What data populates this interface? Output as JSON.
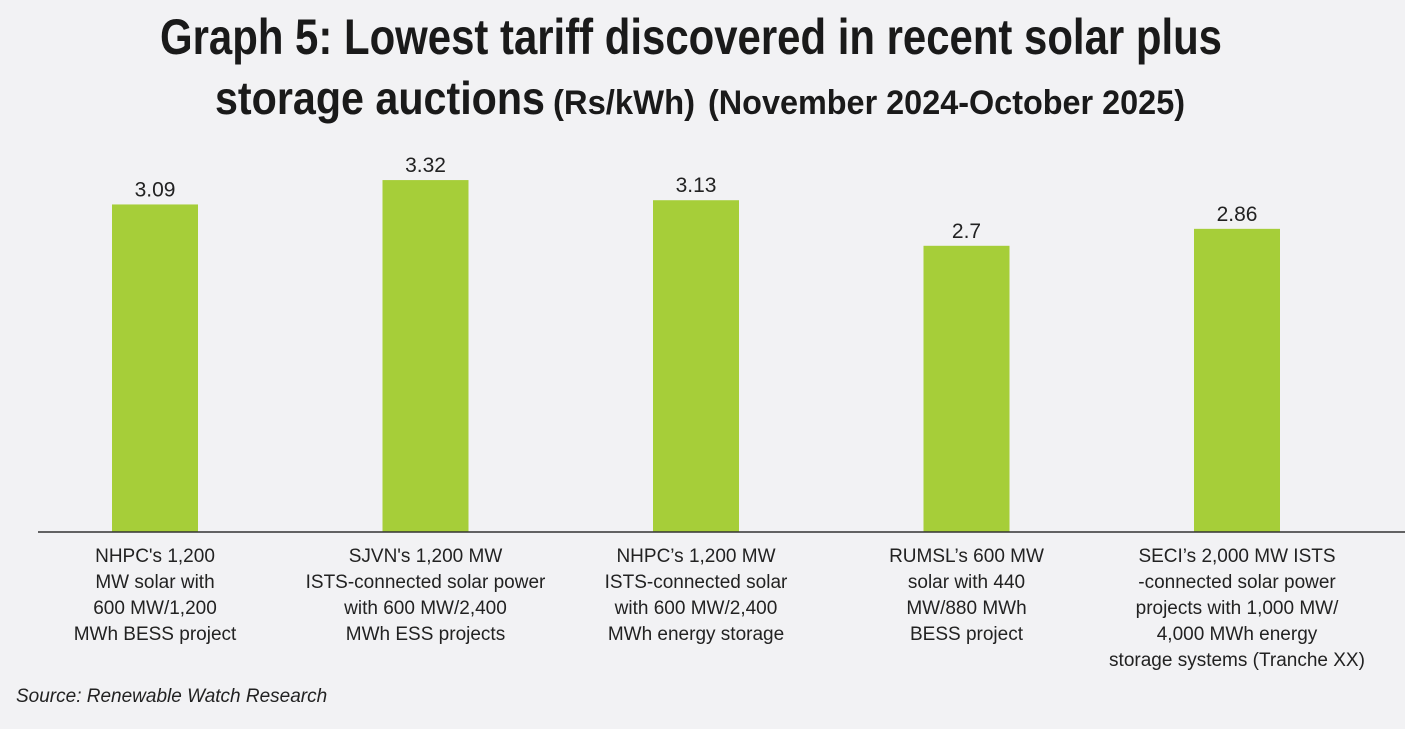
{
  "chart_data": {
    "type": "bar",
    "title": "Graph 5: Lowest tariff discovered in recent solar plus",
    "title_line2_main": "storage auctions",
    "title_line2_unit": "(Rs/kWh)",
    "title_line2_period": "(November 2024-October 2025)",
    "xlabel": "",
    "ylabel": "Rs/kWh",
    "ylim": [
      0,
      3.6
    ],
    "grid": false,
    "categories": [
      [
        "NHPC's 1,200",
        "MW solar with",
        "600 MW/1,200",
        "MWh BESS project"
      ],
      [
        "SJVN's 1,200 MW",
        "ISTS-connected solar power",
        "with 600 MW/2,400",
        "MWh ESS projects"
      ],
      [
        "NHPC’s 1,200 MW",
        "ISTS-connected solar",
        "with 600 MW/2,400",
        "MWh energy storage"
      ],
      [
        "RUMSL’s 600 MW",
        "solar with 440",
        "MW/880 MWh",
        "BESS project"
      ],
      [
        "SECI’s 2,000 MW ISTS",
        "-connected solar power",
        "projects with 1,000 MW/",
        "4,000 MWh energy",
        "storage systems (Tranche XX)"
      ]
    ],
    "values": [
      3.09,
      3.32,
      3.13,
      2.7,
      2.86
    ],
    "value_labels": [
      "3.09",
      "3.32",
      "3.13",
      "2.7",
      "2.86"
    ],
    "bar_color": "#a6ce39",
    "source": "Source: Renewable Watch Research"
  }
}
